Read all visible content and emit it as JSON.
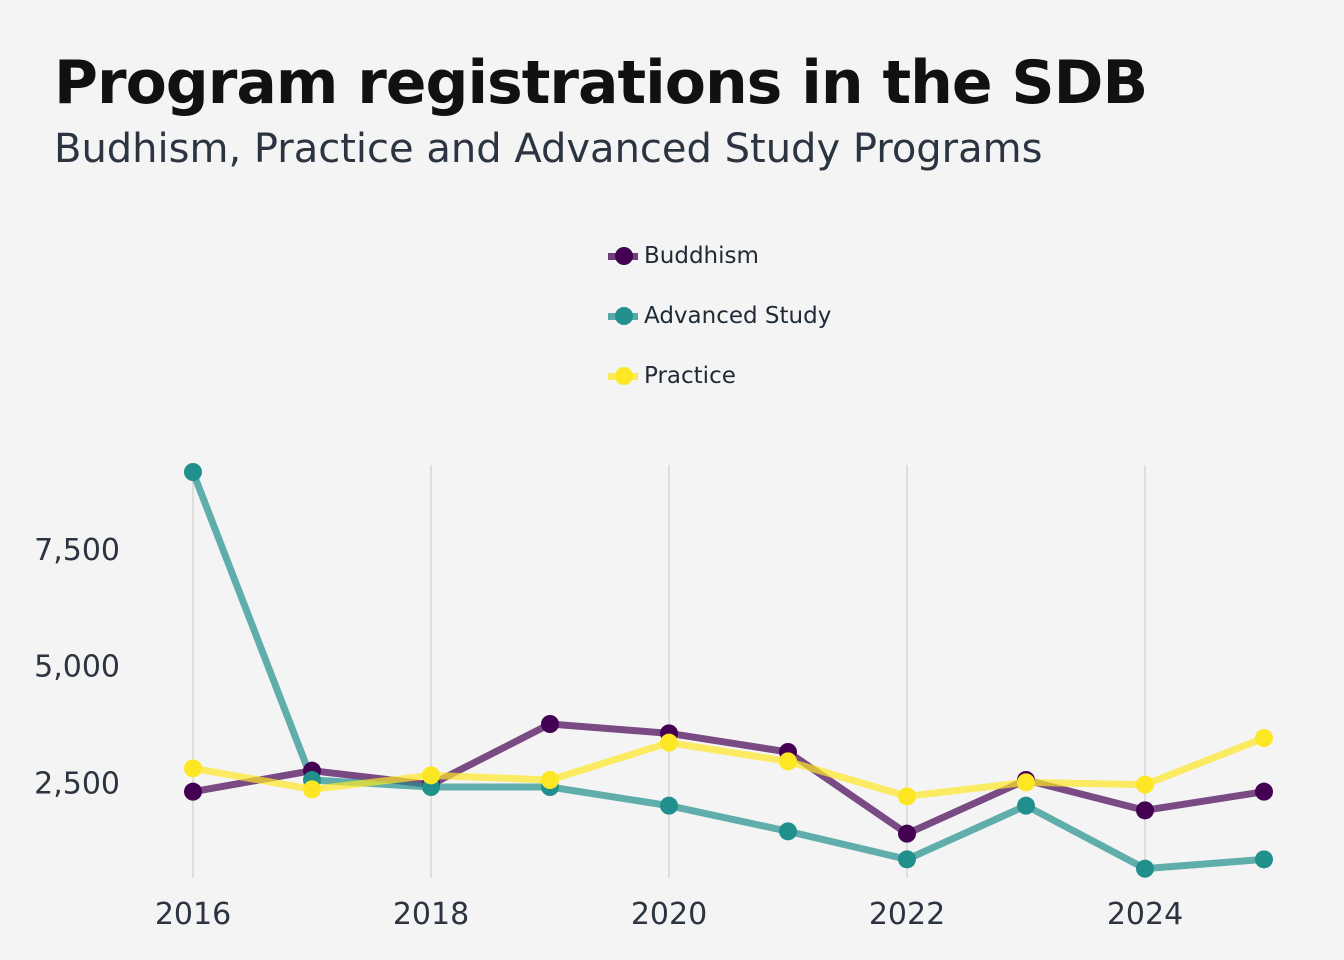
{
  "header": {
    "title": "Program registrations in the SDB",
    "subtitle": "Budhism, Practice and Advanced Study Programs"
  },
  "chart_data": {
    "type": "line",
    "title": "Program registrations in the SDB",
    "subtitle": "Budhism, Practice and Advanced Study Programs",
    "xlabel": "",
    "ylabel": "",
    "x": [
      2016,
      2017,
      2018,
      2019,
      2020,
      2021,
      2022,
      2023,
      2024,
      2025
    ],
    "x_ticks": [
      2016,
      2018,
      2020,
      2022,
      2024
    ],
    "x_tick_labels": [
      "2016",
      "2018",
      "2020",
      "2022",
      "2024"
    ],
    "y_ticks": [
      2500,
      5000,
      7500
    ],
    "y_tick_labels": [
      "2,500",
      "5,000",
      "7,500"
    ],
    "xlim": [
      2016,
      2025
    ],
    "ylim": [
      450,
      9300
    ],
    "grid": "vertical",
    "legend_position": "top-center",
    "series": [
      {
        "name": "Buddhism",
        "color": "#440154",
        "values": [
          2300,
          2750,
          2450,
          3750,
          3550,
          3150,
          1400,
          2550,
          1900,
          2300
        ]
      },
      {
        "name": "Advanced Study",
        "color": "#21908c",
        "values": [
          9150,
          2550,
          2400,
          2400,
          2000,
          1450,
          850,
          2000,
          650,
          850
        ]
      },
      {
        "name": "Practice",
        "color": "#fde725",
        "values": [
          2800,
          2350,
          2650,
          2550,
          3350,
          2950,
          2200,
          2500,
          2450,
          3450
        ]
      }
    ]
  }
}
